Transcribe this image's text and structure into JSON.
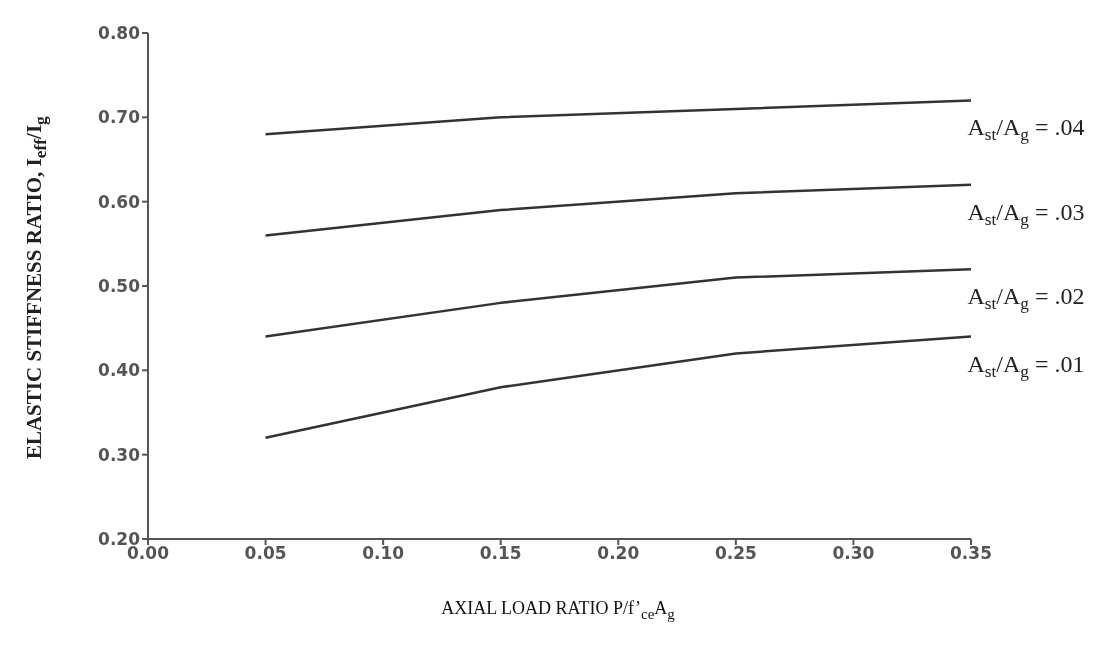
{
  "chart_data": {
    "type": "line",
    "xlabel": "AXIAL LOAD RATIO P/f’$_{ce}$A$_{g}$",
    "ylabel": "ELASTIC STIFFNESS RATIO, I$_{eff}$/I$_{g}$",
    "x": [
      0.05,
      0.15,
      0.25,
      0.35
    ],
    "series": [
      {
        "name": "A$_{st}$/A$_{g}$ = .04",
        "color": "#333333",
        "values": [
          0.68,
          0.7,
          0.71,
          0.72
        ]
      },
      {
        "name": "A$_{st}$/A$_{g}$ = .03",
        "color": "#333333",
        "values": [
          0.56,
          0.59,
          0.61,
          0.62
        ]
      },
      {
        "name": "A$_{st}$/A$_{g}$ = .02",
        "color": "#333333",
        "values": [
          0.44,
          0.48,
          0.51,
          0.52
        ]
      },
      {
        "name": "A$_{st}$/A$_{g}$ = .01",
        "color": "#333333",
        "values": [
          0.32,
          0.38,
          0.42,
          0.44
        ]
      }
    ],
    "xlim": [
      0,
      0.35
    ],
    "xticks": [
      {
        "value": 0,
        "label": "0.00"
      },
      {
        "value": 0.05,
        "label": "0.05"
      },
      {
        "value": 0.1,
        "label": "0.10"
      },
      {
        "value": 0.15,
        "label": "0.15"
      },
      {
        "value": 0.2,
        "label": "0.20"
      },
      {
        "value": 0.25,
        "label": "0.25"
      },
      {
        "value": 0.3,
        "label": "0.30"
      },
      {
        "value": 0.35,
        "label": "0.35"
      }
    ],
    "ylim": [
      0.2,
      0.8
    ],
    "yticks": [
      {
        "value": 0.2,
        "label": "0.20"
      },
      {
        "value": 0.3,
        "label": "0.30"
      },
      {
        "value": 0.4,
        "label": "0.40"
      },
      {
        "value": 0.5,
        "label": "0.50"
      },
      {
        "value": 0.6,
        "label": "0.60"
      },
      {
        "value": 0.7,
        "label": "0.70"
      },
      {
        "value": 0.8,
        "label": "0.80"
      }
    ],
    "grid": false,
    "legend": false,
    "marker": "none",
    "line_style": "solid"
  }
}
